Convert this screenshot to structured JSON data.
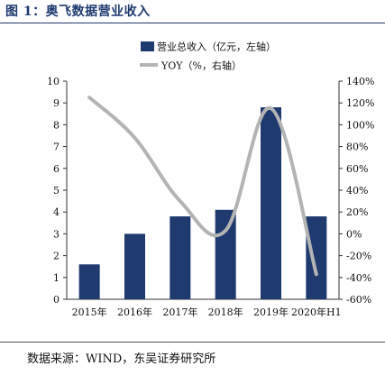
{
  "figure_title": "图 1：奥飞数据营业收入",
  "source": "数据来源：WIND，东吴证券研究所",
  "colors": {
    "bar": "#1f3a6e",
    "line": "#b4b4b4",
    "title": "#1f3a6e"
  },
  "chart_data": {
    "type": "bar",
    "categories": [
      "2015年",
      "2016年",
      "2017年",
      "2018年",
      "2019年",
      "2020年H1"
    ],
    "series": [
      {
        "name": "营业总收入（亿元，左轴）",
        "type": "bar",
        "axis": "left",
        "values": [
          1.6,
          3.0,
          3.8,
          4.1,
          8.8,
          3.8
        ]
      },
      {
        "name": "YOY（%，右轴）",
        "type": "line",
        "axis": "right",
        "values": [
          125,
          88,
          30,
          3,
          115,
          -37
        ]
      }
    ],
    "ylim_left": [
      0,
      10
    ],
    "yticks_left": [
      0,
      1,
      2,
      3,
      4,
      5,
      6,
      7,
      8,
      9,
      10
    ],
    "ylim_right": [
      -60,
      140
    ],
    "yticks_right": [
      "-60%",
      "-40%",
      "-20%",
      "0%",
      "20%",
      "40%",
      "60%",
      "80%",
      "100%",
      "120%",
      "140%"
    ],
    "legend_position": "top",
    "grid": false
  }
}
